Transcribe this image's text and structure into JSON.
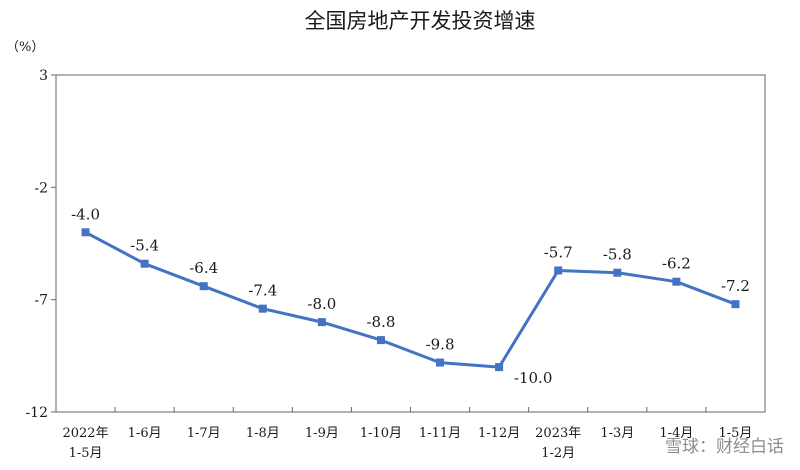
{
  "chart_data": {
    "type": "line",
    "title": "全国房地产开发投资增速",
    "ylabel": "（%）",
    "xlabel": "",
    "categories": [
      [
        "2022年",
        "1-5月"
      ],
      [
        "1-6月"
      ],
      [
        "1-7月"
      ],
      [
        "1-8月"
      ],
      [
        "1-9月"
      ],
      [
        "1-10月"
      ],
      [
        "1-11月"
      ],
      [
        "1-12月"
      ],
      [
        "2023年",
        "1-2月"
      ],
      [
        "1-3月"
      ],
      [
        "1-4月"
      ],
      [
        "1-5月"
      ]
    ],
    "series": [
      {
        "values": [
          -4.0,
          -5.4,
          -6.4,
          -7.4,
          -8.0,
          -8.8,
          -9.8,
          -10.0,
          -5.7,
          -5.8,
          -6.2,
          -7.2
        ],
        "labels": [
          "-4.0",
          "-5.4",
          "-6.4",
          "-7.4",
          "-8.0",
          "-8.8",
          "-9.8",
          "-10.0",
          "-5.7",
          "-5.8",
          "-6.2",
          "-7.2"
        ]
      }
    ],
    "ylim": [
      -12,
      3
    ],
    "yticks": [
      3,
      -2,
      -7,
      -12
    ],
    "yticklabels": [
      "3",
      "-2",
      "-7",
      "-12"
    ],
    "grid": false,
    "legend": "none",
    "line_color": "#4472c4"
  },
  "watermark": "雪球：财经白话"
}
